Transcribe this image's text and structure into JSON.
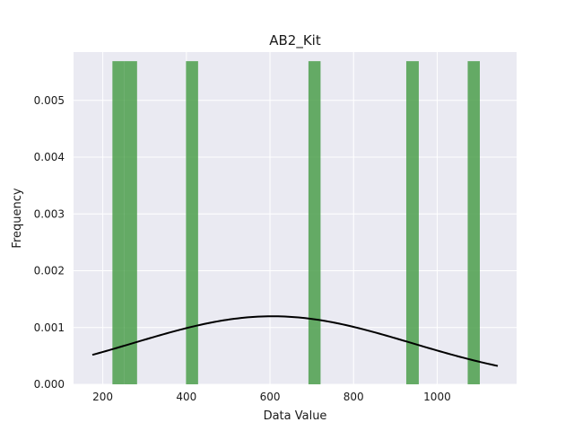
{
  "chart_data": {
    "type": "bar",
    "title": "AB2_Kit",
    "xlabel": "Data Value",
    "ylabel": "Frequency",
    "xlim": [
      130,
      1190
    ],
    "ylim": [
      0,
      0.00585
    ],
    "grid": true,
    "xticks": [
      200,
      400,
      600,
      800,
      1000
    ],
    "yticks": [
      0.0,
      0.001,
      0.002,
      0.003,
      0.004,
      0.005
    ],
    "ytick_labels": [
      "0.000",
      "0.001",
      "0.002",
      "0.003",
      "0.004",
      "0.005"
    ],
    "histogram": {
      "bin_width": 29.3,
      "bins": [
        {
          "x0": 223,
          "x1": 252,
          "value": 0.00569
        },
        {
          "x0": 252,
          "x1": 282,
          "value": 0.00569
        },
        {
          "x0": 399,
          "x1": 428,
          "value": 0.00569
        },
        {
          "x0": 692,
          "x1": 721,
          "value": 0.00569
        },
        {
          "x0": 926,
          "x1": 956,
          "value": 0.00569
        },
        {
          "x0": 1073,
          "x1": 1102,
          "value": 0.00569
        }
      ],
      "color": "#4c9f4c"
    },
    "density_curve": {
      "mean": 606,
      "std": 333,
      "x_range": [
        175,
        1145
      ],
      "color": "#000000"
    }
  },
  "colors": {
    "plot_background": "#eaeaf2",
    "grid": "#ffffff",
    "bar": "#4c9f4c",
    "curve": "#000000"
  }
}
